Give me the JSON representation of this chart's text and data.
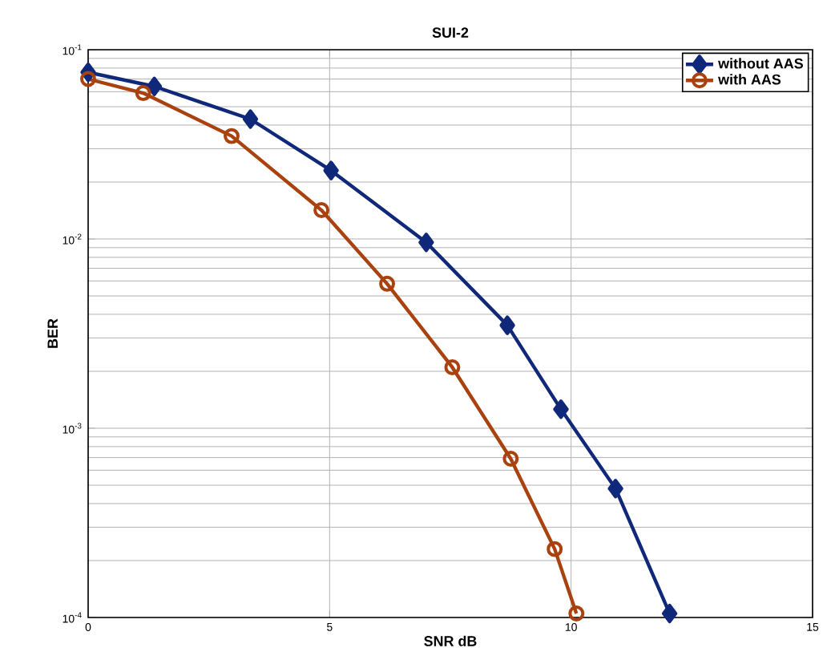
{
  "chart_data": {
    "type": "line",
    "title": "SUI-2",
    "xlabel": "SNR dB",
    "ylabel": "BER",
    "log": "y",
    "grid": true,
    "legend": "top right",
    "xlim": [
      0,
      15
    ],
    "xticks": [
      0,
      5,
      10,
      15
    ],
    "ylim": [
      0.0001,
      0.1
    ],
    "yticks": [
      {
        "value": 0.0001,
        "label": "10$^{-4}$"
      },
      {
        "value": 0.001,
        "label": "10$^{-3}$"
      },
      {
        "value": 0.01,
        "label": "10$^{-2}$"
      },
      {
        "value": 0.1,
        "label": "10$^{-1}$"
      }
    ],
    "series": [
      {
        "name": "without AAS",
        "color": "#10287a",
        "marker": "diamond",
        "x": [
          0,
          1.37,
          3.36,
          5.03,
          7.0,
          8.68,
          9.79,
          10.92,
          12.04
        ],
        "values": [
          0.076,
          0.064,
          0.043,
          0.023,
          0.0096,
          0.0035,
          0.00126,
          0.00048,
          0.000105
        ]
      },
      {
        "name": "with AAS",
        "color": "#a9420f",
        "marker": "circle",
        "x": [
          0,
          1.14,
          2.97,
          4.83,
          6.19,
          7.54,
          8.75,
          9.66,
          10.11
        ],
        "values": [
          0.07,
          0.059,
          0.035,
          0.0142,
          0.0058,
          0.0021,
          0.00069,
          0.00023,
          0.000105
        ]
      }
    ]
  }
}
